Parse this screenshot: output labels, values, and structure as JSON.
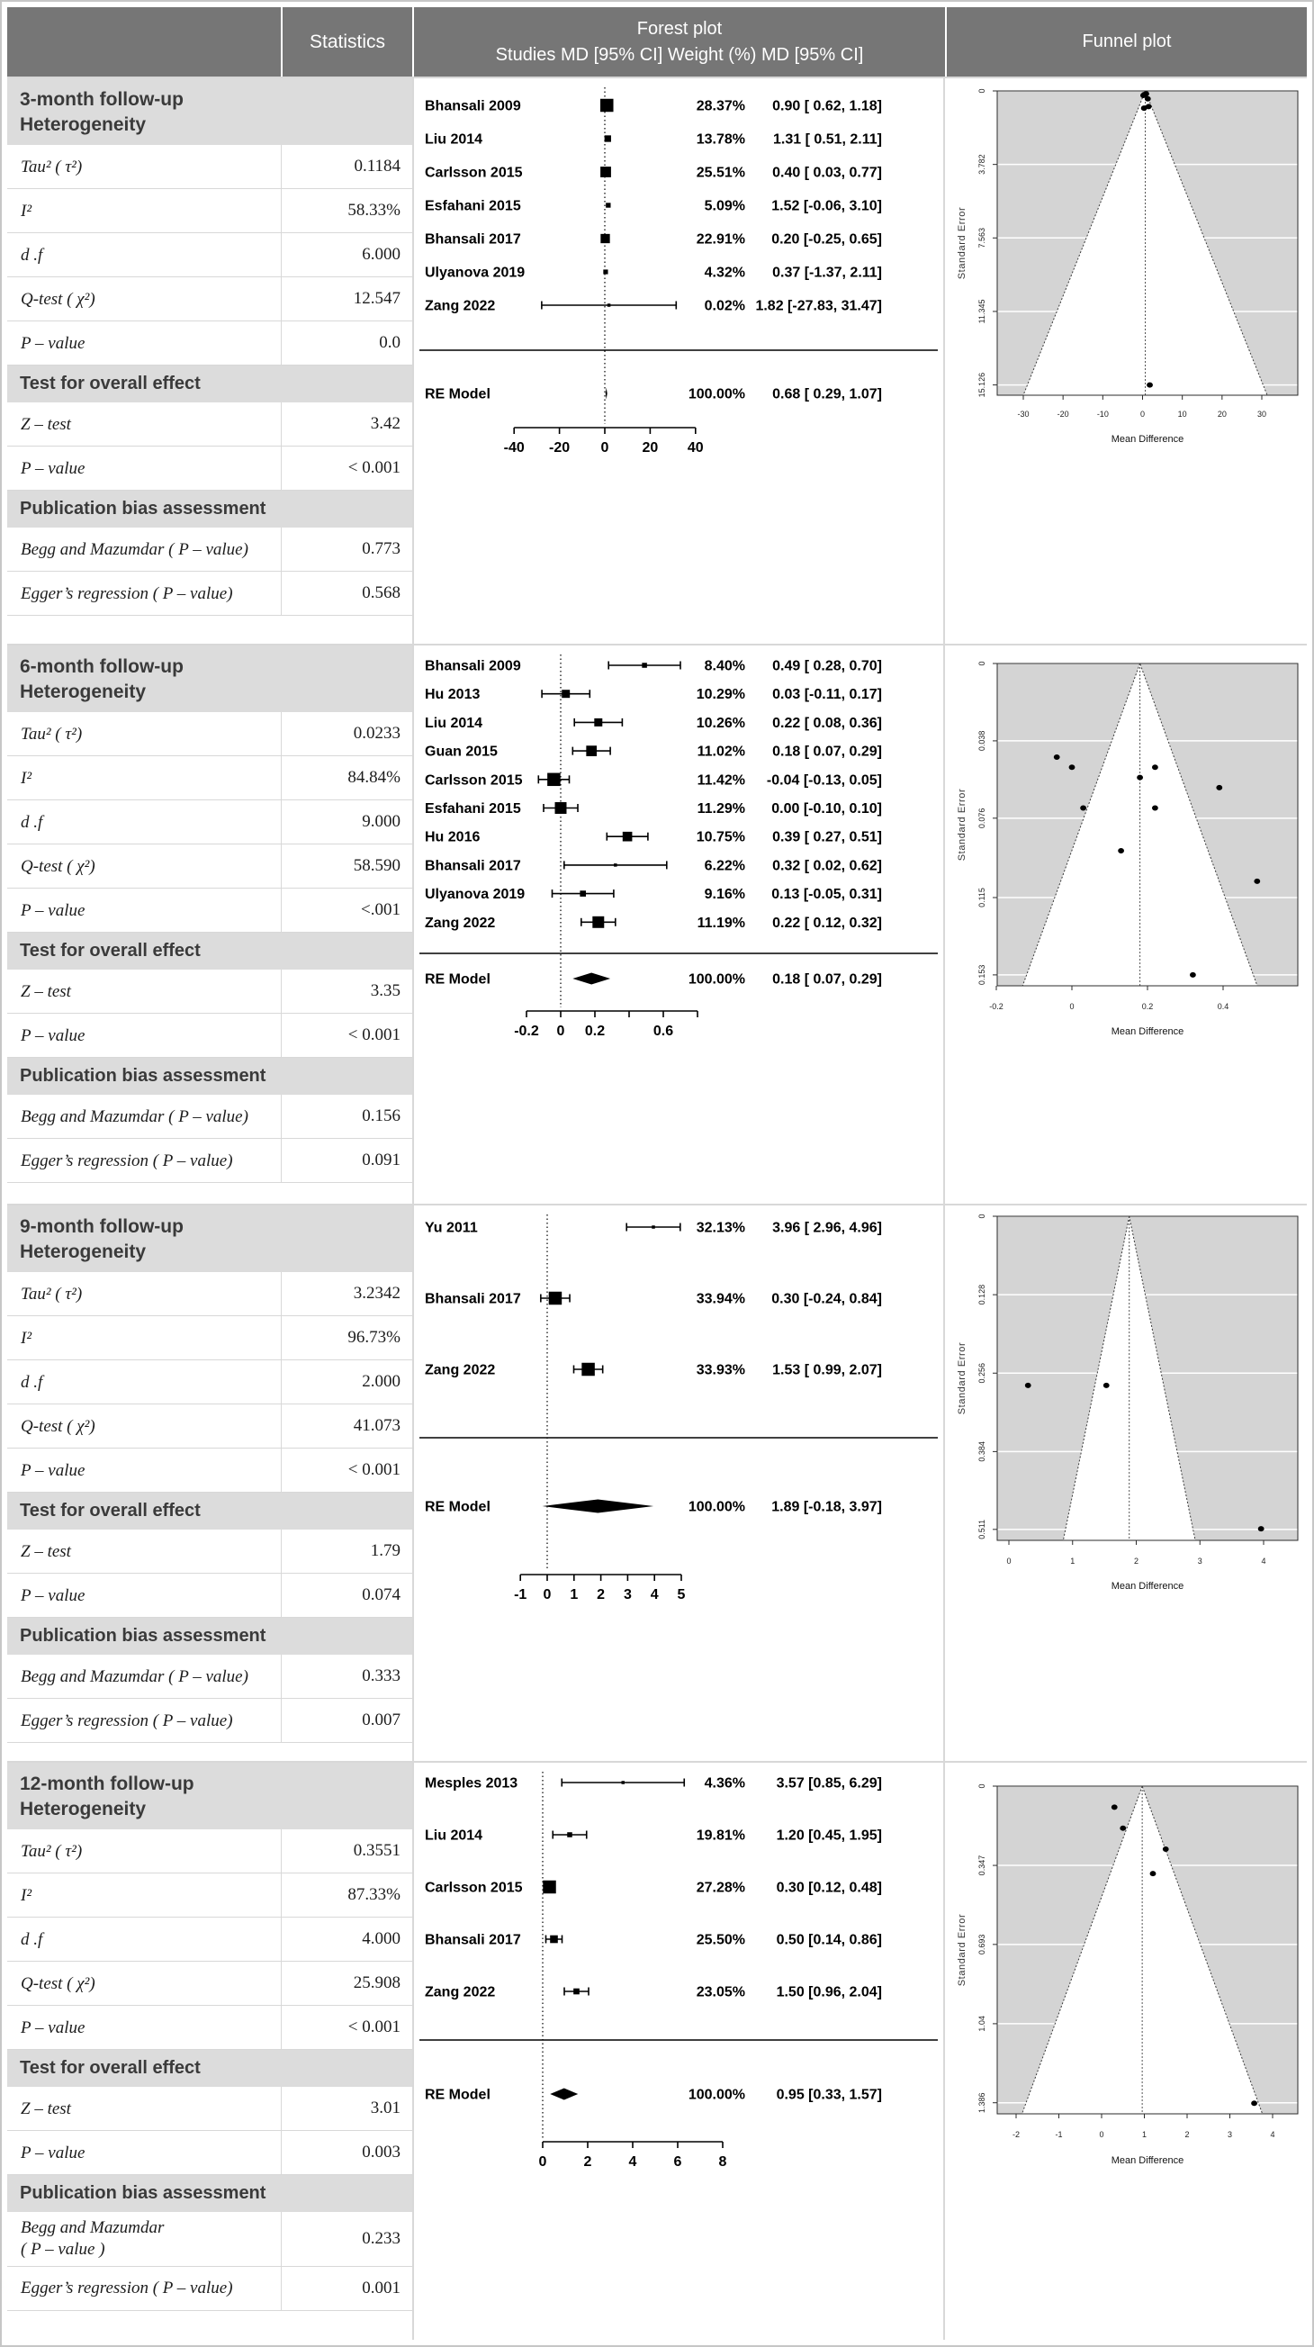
{
  "header": {
    "statistics": "Statistics",
    "forest_title": "Forest plot",
    "forest_subtitle": "Studies MD [95% CI] Weight (%) MD [95% CI]",
    "funnel_title": "Funnel plot"
  },
  "colors": {
    "header_bg": "#767676",
    "section_header_bg": "#dcdcdc",
    "funnel_plot_bg": "#d4d4d4",
    "grid_border": "#c6c6c6",
    "marker": "#000000"
  },
  "chart_data": [
    {
      "type": "forest",
      "title": "3-month follow-up",
      "subtitle": "Heterogeneity",
      "stats": [
        {
          "t": "d",
          "label": "Tau² ( τ²)",
          "value": "0.1184"
        },
        {
          "t": "d",
          "label": "I²",
          "value": "58.33%"
        },
        {
          "t": "d",
          "label": "d .f",
          "value": "6.000"
        },
        {
          "t": "d",
          "label": "Q-test ( χ²)",
          "value": "12.547"
        },
        {
          "t": "d",
          "label": "P – value",
          "value": "0.0"
        },
        {
          "t": "h",
          "label": "Test for overall effect"
        },
        {
          "t": "d",
          "label": "Z – test",
          "value": "3.42"
        },
        {
          "t": "d",
          "label": "P – value",
          "value": "< 0.001"
        },
        {
          "t": "h",
          "label": "Publication bias assessment"
        },
        {
          "t": "d",
          "label": "Begg and Mazumdar ( P – value)",
          "value": "0.773"
        },
        {
          "t": "d",
          "label": "Egger’s regression ( P – value)",
          "value": "0.568"
        }
      ],
      "forest": {
        "studies": [
          {
            "name": "Bhansali 2009",
            "weight": "28.37%",
            "ci": "0.90 [ 0.62, 1.18]",
            "md": 0.9,
            "lo": 0.62,
            "hi": 1.18,
            "se": 0.143
          },
          {
            "name": "Liu 2014",
            "weight": "13.78%",
            "ci": "1.31 [ 0.51, 2.11]",
            "md": 1.31,
            "lo": 0.51,
            "hi": 2.11,
            "se": 0.408
          },
          {
            "name": "Carlsson 2015",
            "weight": "25.51%",
            "ci": "0.40 [ 0.03, 0.77]",
            "md": 0.4,
            "lo": 0.03,
            "hi": 0.77,
            "se": 0.189
          },
          {
            "name": "Esfahani 2015",
            "weight": "5.09%",
            "ci": "1.52 [-0.06, 3.10]",
            "md": 1.52,
            "lo": -0.06,
            "hi": 3.1,
            "se": 0.806
          },
          {
            "name": "Bhansali 2017",
            "weight": "22.91%",
            "ci": "0.20 [-0.25, 0.65]",
            "md": 0.2,
            "lo": -0.25,
            "hi": 0.65,
            "se": 0.23
          },
          {
            "name": "Ulyanova 2019",
            "weight": "4.32%",
            "ci": "0.37 [-1.37, 2.11]",
            "md": 0.37,
            "lo": -1.37,
            "hi": 2.11,
            "se": 0.888
          },
          {
            "name": "Zang 2022",
            "weight": "0.02%",
            "ci": "1.82 [-27.83, 31.47]",
            "md": 1.82,
            "lo": -27.83,
            "hi": 31.47,
            "se": 15.128
          }
        ],
        "re": {
          "name": "RE Model",
          "weight": "100.00%",
          "ci": "0.68 [ 0.29, 1.07]",
          "md": 0.68,
          "lo": 0.29,
          "hi": 1.07
        },
        "xticks": [
          -40,
          -20,
          0,
          20,
          40
        ],
        "xtick_labels": [
          "-40",
          "-20",
          "0",
          "20",
          "40"
        ]
      },
      "funnel": {
        "ylabel": "Standard Error",
        "xlabel": "Mean Difference",
        "yticks": [
          0,
          3.782,
          7.563,
          11.345,
          15.126
        ],
        "ytick_labels": [
          "0",
          "3.782",
          "7.563",
          "11.345",
          "15.126"
        ],
        "xticks": [
          -30,
          -20,
          -10,
          0,
          10,
          20,
          30
        ],
        "xtick_labels": [
          "-30",
          "-20",
          "-10",
          "0",
          "10",
          "20",
          "30"
        ],
        "center": 0.68,
        "points": [
          [
            0.9,
            0.143
          ],
          [
            1.31,
            0.408
          ],
          [
            0.4,
            0.189
          ],
          [
            1.52,
            0.806
          ],
          [
            0.2,
            0.23
          ],
          [
            0.37,
            0.888
          ],
          [
            1.82,
            15.128
          ]
        ]
      }
    },
    {
      "type": "forest",
      "title": "6-month follow-up",
      "subtitle": "Heterogeneity",
      "stats": [
        {
          "t": "d",
          "label": "Tau² ( τ²)",
          "value": "0.0233"
        },
        {
          "t": "d",
          "label": "I²",
          "value": "84.84%"
        },
        {
          "t": "d",
          "label": "d .f",
          "value": "9.000"
        },
        {
          "t": "d",
          "label": "Q-test ( χ²)",
          "value": "58.590"
        },
        {
          "t": "d",
          "label": "P – value",
          "value": "<.001"
        },
        {
          "t": "h",
          "label": "Test for overall effect"
        },
        {
          "t": "d",
          "label": "Z – test",
          "value": "3.35"
        },
        {
          "t": "d",
          "label": "P – value",
          "value": "< 0.001"
        },
        {
          "t": "h",
          "label": "Publication bias assessment"
        },
        {
          "t": "d",
          "label": "Begg and Mazumdar ( P – value)",
          "value": "0.156"
        },
        {
          "t": "d",
          "label": "Egger’s regression ( P – value)",
          "value": "0.091"
        }
      ],
      "forest": {
        "studies": [
          {
            "name": "Bhansali 2009",
            "weight": "8.40%",
            "ci": "0.49 [ 0.28, 0.70]",
            "md": 0.49,
            "lo": 0.28,
            "hi": 0.7,
            "se": 0.107
          },
          {
            "name": "Hu 2013",
            "weight": "10.29%",
            "ci": "0.03 [-0.11, 0.17]",
            "md": 0.03,
            "lo": -0.11,
            "hi": 0.17,
            "se": 0.071
          },
          {
            "name": "Liu 2014",
            "weight": "10.26%",
            "ci": "0.22 [ 0.08, 0.36]",
            "md": 0.22,
            "lo": 0.08,
            "hi": 0.36,
            "se": 0.071
          },
          {
            "name": "Guan 2015",
            "weight": "11.02%",
            "ci": "0.18 [ 0.07, 0.29]",
            "md": 0.18,
            "lo": 0.07,
            "hi": 0.29,
            "se": 0.056
          },
          {
            "name": "Carlsson 2015",
            "weight": "11.42%",
            "ci": "-0.04 [-0.13, 0.05]",
            "md": -0.04,
            "lo": -0.13,
            "hi": 0.05,
            "se": 0.046
          },
          {
            "name": "Esfahani 2015",
            "weight": "11.29%",
            "ci": "0.00 [-0.10, 0.10]",
            "md": 0.0,
            "lo": -0.1,
            "hi": 0.1,
            "se": 0.051
          },
          {
            "name": "Hu 2016",
            "weight": "10.75%",
            "ci": "0.39 [ 0.27, 0.51]",
            "md": 0.39,
            "lo": 0.27,
            "hi": 0.51,
            "se": 0.061
          },
          {
            "name": "Bhansali 2017",
            "weight": "6.22%",
            "ci": "0.32 [ 0.02, 0.62]",
            "md": 0.32,
            "lo": 0.02,
            "hi": 0.62,
            "se": 0.153
          },
          {
            "name": "Ulyanova 2019",
            "weight": "9.16%",
            "ci": "0.13 [-0.05, 0.31]",
            "md": 0.13,
            "lo": -0.05,
            "hi": 0.31,
            "se": 0.092
          },
          {
            "name": "Zang 2022",
            "weight": "11.19%",
            "ci": "0.22 [ 0.12, 0.32]",
            "md": 0.22,
            "lo": 0.12,
            "hi": 0.32,
            "se": 0.051
          }
        ],
        "re": {
          "name": "RE Model",
          "weight": "100.00%",
          "ci": "0.18 [ 0.07, 0.29]",
          "md": 0.18,
          "lo": 0.07,
          "hi": 0.29
        },
        "xticks": [
          -0.2,
          0,
          0.2,
          0.4,
          0.6,
          0.8
        ],
        "xtick_labels": [
          "-0.2",
          "0",
          "0.2",
          "",
          "0.6",
          ""
        ]
      },
      "funnel": {
        "ylabel": "Standard Error",
        "xlabel": "Mean Difference",
        "yticks": [
          0,
          0.038,
          0.076,
          0.115,
          0.153
        ],
        "ytick_labels": [
          "0",
          "0.038",
          "0.076",
          "0.115",
          "0.153"
        ],
        "xticks": [
          -0.2,
          0,
          0.2,
          0.4
        ],
        "xtick_labels": [
          "-0.2",
          "0",
          "0.2",
          "0.4"
        ],
        "center": 0.18,
        "points": [
          [
            0.49,
            0.107
          ],
          [
            0.03,
            0.071
          ],
          [
            0.22,
            0.071
          ],
          [
            0.18,
            0.056
          ],
          [
            -0.04,
            0.046
          ],
          [
            0.0,
            0.051
          ],
          [
            0.39,
            0.061
          ],
          [
            0.32,
            0.153
          ],
          [
            0.13,
            0.092
          ],
          [
            0.22,
            0.051
          ]
        ]
      }
    },
    {
      "type": "forest",
      "title": "9-month follow-up",
      "subtitle": "Heterogeneity",
      "stats": [
        {
          "t": "d",
          "label": "Tau² ( τ²)",
          "value": "3.2342"
        },
        {
          "t": "d",
          "label": "I²",
          "value": "96.73%"
        },
        {
          "t": "d",
          "label": "d .f",
          "value": "2.000"
        },
        {
          "t": "d",
          "label": "Q-test ( χ²)",
          "value": "41.073"
        },
        {
          "t": "d",
          "label": "P – value",
          "value": "< 0.001"
        },
        {
          "t": "h",
          "label": "Test for overall effect"
        },
        {
          "t": "d",
          "label": "Z – test",
          "value": "1.79"
        },
        {
          "t": "d",
          "label": "P – value",
          "value": "0.074"
        },
        {
          "t": "h",
          "label": "Publication bias assessment"
        },
        {
          "t": "d",
          "label": "Begg and Mazumdar ( P – value)",
          "value": "0.333"
        },
        {
          "t": "d",
          "label": "Egger’s regression ( P – value)",
          "value": "0.007"
        }
      ],
      "forest": {
        "studies": [
          {
            "name": "Yu 2011",
            "weight": "32.13%",
            "ci": "3.96 [ 2.96, 4.96]",
            "md": 3.96,
            "lo": 2.96,
            "hi": 4.96,
            "se": 0.51
          },
          {
            "name": "Bhansali 2017",
            "weight": "33.94%",
            "ci": "0.30 [-0.24, 0.84]",
            "md": 0.3,
            "lo": -0.24,
            "hi": 0.84,
            "se": 0.276
          },
          {
            "name": "Zang 2022",
            "weight": "33.93%",
            "ci": "1.53 [ 0.99, 2.07]",
            "md": 1.53,
            "lo": 0.99,
            "hi": 2.07,
            "se": 0.276
          }
        ],
        "re": {
          "name": "RE Model",
          "weight": "100.00%",
          "ci": "1.89 [-0.18, 3.97]",
          "md": 1.89,
          "lo": -0.18,
          "hi": 3.97
        },
        "xticks": [
          -1,
          0,
          1,
          2,
          3,
          4,
          5
        ],
        "xtick_labels": [
          "-1",
          "0",
          "1",
          "2",
          "3",
          "4",
          "5"
        ]
      },
      "funnel": {
        "ylabel": "Standard Error",
        "xlabel": "Mean Difference",
        "yticks": [
          0,
          0.128,
          0.256,
          0.384,
          0.511
        ],
        "ytick_labels": [
          "0",
          "0.128",
          "0.256",
          "0.384",
          "0.511"
        ],
        "xticks": [
          0,
          1,
          2,
          3,
          4
        ],
        "xtick_labels": [
          "0",
          "1",
          "2",
          "3",
          "4"
        ],
        "center": 1.89,
        "points": [
          [
            3.96,
            0.51
          ],
          [
            0.3,
            0.276
          ],
          [
            1.53,
            0.276
          ]
        ]
      }
    },
    {
      "type": "forest",
      "title": "12-month follow-up",
      "subtitle": "Heterogeneity",
      "stats": [
        {
          "t": "d",
          "label": "Tau² ( τ²)",
          "value": "0.3551"
        },
        {
          "t": "d",
          "label": "I²",
          "value": "87.33%"
        },
        {
          "t": "d",
          "label": "d .f",
          "value": "4.000"
        },
        {
          "t": "d",
          "label": "Q-test ( χ²)",
          "value": "25.908"
        },
        {
          "t": "d",
          "label": "P – value",
          "value": "< 0.001"
        },
        {
          "t": "h",
          "label": "Test for overall effect"
        },
        {
          "t": "d",
          "label": "Z – test",
          "value": "3.01"
        },
        {
          "t": "d",
          "label": "P – value",
          "value": "0.003"
        },
        {
          "t": "h",
          "label": "Publication bias assessment"
        },
        {
          "t": "d",
          "label": "Begg and Mazumdar\n( P – value )",
          "value": "0.233"
        },
        {
          "t": "d",
          "label": "Egger’s regression ( P – value)",
          "value": "0.001"
        }
      ],
      "forest": {
        "studies": [
          {
            "name": "Mesples 2013",
            "weight": "4.36%",
            "ci": "3.57 [0.85, 6.29]",
            "md": 3.57,
            "lo": 0.85,
            "hi": 6.29,
            "se": 1.388
          },
          {
            "name": "Liu 2014",
            "weight": "19.81%",
            "ci": "1.20 [0.45, 1.95]",
            "md": 1.2,
            "lo": 0.45,
            "hi": 1.95,
            "se": 0.383
          },
          {
            "name": "Carlsson 2015",
            "weight": "27.28%",
            "ci": "0.30 [0.12, 0.48]",
            "md": 0.3,
            "lo": 0.12,
            "hi": 0.48,
            "se": 0.092
          },
          {
            "name": "Bhansali 2017",
            "weight": "25.50%",
            "ci": "0.50 [0.14, 0.86]",
            "md": 0.5,
            "lo": 0.14,
            "hi": 0.86,
            "se": 0.184
          },
          {
            "name": "Zang 2022",
            "weight": "23.05%",
            "ci": "1.50 [0.96, 2.04]",
            "md": 1.5,
            "lo": 0.96,
            "hi": 2.04,
            "se": 0.276
          }
        ],
        "re": {
          "name": "RE Model",
          "weight": "100.00%",
          "ci": "0.95 [0.33, 1.57]",
          "md": 0.95,
          "lo": 0.33,
          "hi": 1.57
        },
        "xticks": [
          0,
          2,
          4,
          6,
          8
        ],
        "xtick_labels": [
          "0",
          "2",
          "4",
          "6",
          "8"
        ]
      },
      "funnel": {
        "ylabel": "Standard Error",
        "xlabel": "Mean Difference",
        "yticks": [
          0,
          0.347,
          0.693,
          1.04,
          1.386
        ],
        "ytick_labels": [
          "0",
          "0.347",
          "0.693",
          "1.04",
          "1.386"
        ],
        "xticks": [
          -2,
          -1,
          0,
          1,
          2,
          3,
          4
        ],
        "xtick_labels": [
          "-2",
          "-1",
          "0",
          "1",
          "2",
          "3",
          "4"
        ],
        "center": 0.95,
        "points": [
          [
            3.57,
            1.388
          ],
          [
            1.2,
            0.383
          ],
          [
            0.3,
            0.092
          ],
          [
            0.5,
            0.184
          ],
          [
            1.5,
            0.276
          ]
        ]
      }
    }
  ]
}
